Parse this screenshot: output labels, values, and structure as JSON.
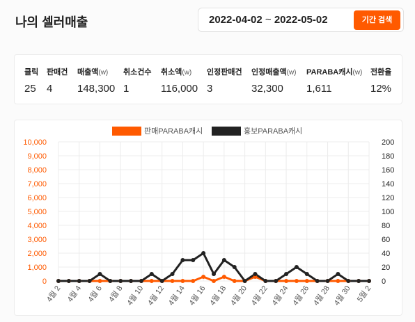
{
  "page_title": "나의 셀러매출",
  "date_range": {
    "start": "2022-04-02",
    "separator": "~",
    "end": "2022-05-02"
  },
  "search_button": "기간 검색",
  "stats": [
    {
      "label": "클릭",
      "unit": "",
      "value": "25"
    },
    {
      "label": "판매건",
      "unit": "",
      "value": "4"
    },
    {
      "label": "매출액",
      "unit": "(w)",
      "value": "148,300"
    },
    {
      "label": "취소건수",
      "unit": "",
      "value": "1"
    },
    {
      "label": "취소액",
      "unit": "(w)",
      "value": "116,000"
    },
    {
      "label": "인정판매건",
      "unit": "",
      "value": "3"
    },
    {
      "label": "인정매출액",
      "unit": "(w)",
      "value": "32,300"
    },
    {
      "label": "PARABA캐시",
      "unit": "(w)",
      "value": "1,611"
    },
    {
      "label": "전환율",
      "unit": "",
      "value": "12%"
    }
  ],
  "chart_data": {
    "type": "line",
    "title": "",
    "xlabel": "",
    "ylabel": "",
    "categories": [
      "4월 2",
      "4월 3",
      "4월 4",
      "4월 5",
      "4월 6",
      "4월 7",
      "4월 8",
      "4월 9",
      "4월 10",
      "4월 11",
      "4월 12",
      "4월 13",
      "4월 14",
      "4월 15",
      "4월 16",
      "4월 17",
      "4월 18",
      "4월 19",
      "4월 20",
      "4월 21",
      "4월 22",
      "4월 23",
      "4월 24",
      "4월 25",
      "4월 26",
      "4월 27",
      "4월 28",
      "4월 29",
      "4월 30",
      "5월 1",
      "5월 2"
    ],
    "tick_labels": [
      "4월 2",
      "4월 4",
      "4월 6",
      "4월 8",
      "4월 10",
      "4월 12",
      "4월 14",
      "4월 16",
      "4월 18",
      "4월 20",
      "4월 22",
      "4월 24",
      "4월 26",
      "4월 28",
      "4월 30",
      "5월 2"
    ],
    "series": [
      {
        "name": "판매PARABA캐시",
        "axis": "left",
        "color": "#ff5a00",
        "values": [
          0,
          0,
          0,
          0,
          0,
          0,
          0,
          0,
          0,
          0,
          0,
          0,
          0,
          0,
          300,
          0,
          300,
          0,
          0,
          300,
          0,
          0,
          0,
          0,
          0,
          0,
          0,
          0,
          0,
          0,
          0
        ]
      },
      {
        "name": "홍보PARABA캐시",
        "axis": "right",
        "color": "#222222",
        "values": [
          0,
          0,
          0,
          0,
          10,
          0,
          0,
          0,
          0,
          10,
          0,
          10,
          30,
          30,
          40,
          10,
          30,
          20,
          0,
          10,
          0,
          0,
          10,
          20,
          10,
          0,
          0,
          10,
          0,
          0,
          0
        ]
      }
    ],
    "y_left": {
      "min": 0,
      "max": 10000,
      "ticks": [
        "0",
        "1,000",
        "2,000",
        "3,000",
        "4,000",
        "5,000",
        "6,000",
        "7,000",
        "8,000",
        "9,000",
        "10,000"
      ]
    },
    "y_right": {
      "min": 0,
      "max": 200,
      "ticks": [
        "0",
        "20",
        "40",
        "60",
        "80",
        "100",
        "120",
        "140",
        "160",
        "180",
        "200"
      ]
    },
    "legend_position": "top-center",
    "grid": true,
    "colors": {
      "left_axis": "#ff5a00",
      "right_axis": "#222222",
      "grid": "#ececec"
    }
  }
}
